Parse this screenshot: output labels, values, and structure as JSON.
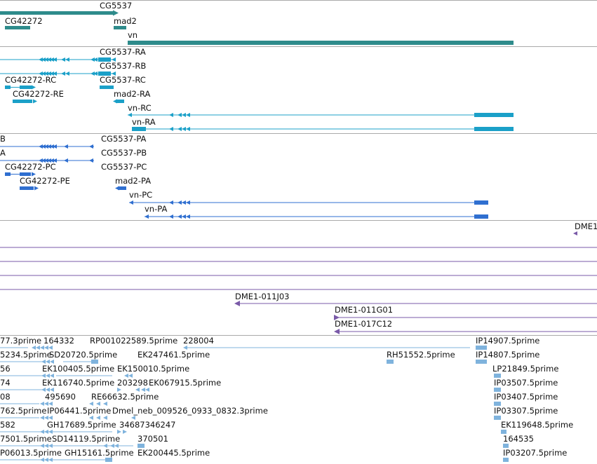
{
  "colors": {
    "gene": "#2e8b8b",
    "transcript": "#1ba0c8",
    "protein": "#2f6fd0",
    "clone": "#7a5aa8",
    "est": "#7fb3dd",
    "divider": "#aaaaaa"
  },
  "tracks": {
    "genes": {
      "labels": [
        "CG5537",
        "CG42272",
        "mad2",
        "vn"
      ]
    },
    "transcripts": {
      "labels": [
        "CG5537-RA",
        "CG5537-RB",
        "CG5537-RC",
        "CG42272-RC",
        "CG42272-RE",
        "mad2-RA",
        "vn-RC",
        "vn-RA"
      ]
    },
    "proteins": {
      "labels": [
        "B",
        "A",
        "CG5537-PA",
        "CG5537-PB",
        "CG5537-PC",
        "CG42272-PC",
        "CG42272-PE",
        "mad2-PA",
        "vn-PC",
        "vn-PA"
      ]
    },
    "clones": {
      "labels": [
        "DME1",
        "DME1-011J03",
        "DME1-011G01",
        "DME1-017C12"
      ]
    },
    "ests": {
      "labels": [
        "77.3prime",
        "164332",
        "RP001022589.5prime",
        "228004",
        "IP14907.5prime",
        "5234.5prime",
        "SD20720.5prime",
        "EK247461.5prime",
        "RH51552.5prime",
        "IP14807.5prime",
        "56",
        "EK100405.5prime",
        "EK150010.5prime",
        "LP21849.5prime",
        "74",
        "EK116740.5prime",
        "203298",
        "EK067915.5prime",
        "IP03507.5prime",
        "08",
        "495690",
        "RE66632.5prime",
        "IP03407.5prime",
        "762.5prime",
        "IP06441.5prime",
        "Dmel_neb_009526_0933_0832.3prime",
        "IP03307.5prime",
        "582",
        "GH17689.5prime",
        "34687346247",
        "EK119648.5prime",
        "7501.5prime",
        "SD14119.5prime",
        "370501",
        "164535",
        "P06013.5prime",
        "GH15161.5prime",
        "EK200445.5prime",
        "IP03207.5prime"
      ]
    }
  }
}
